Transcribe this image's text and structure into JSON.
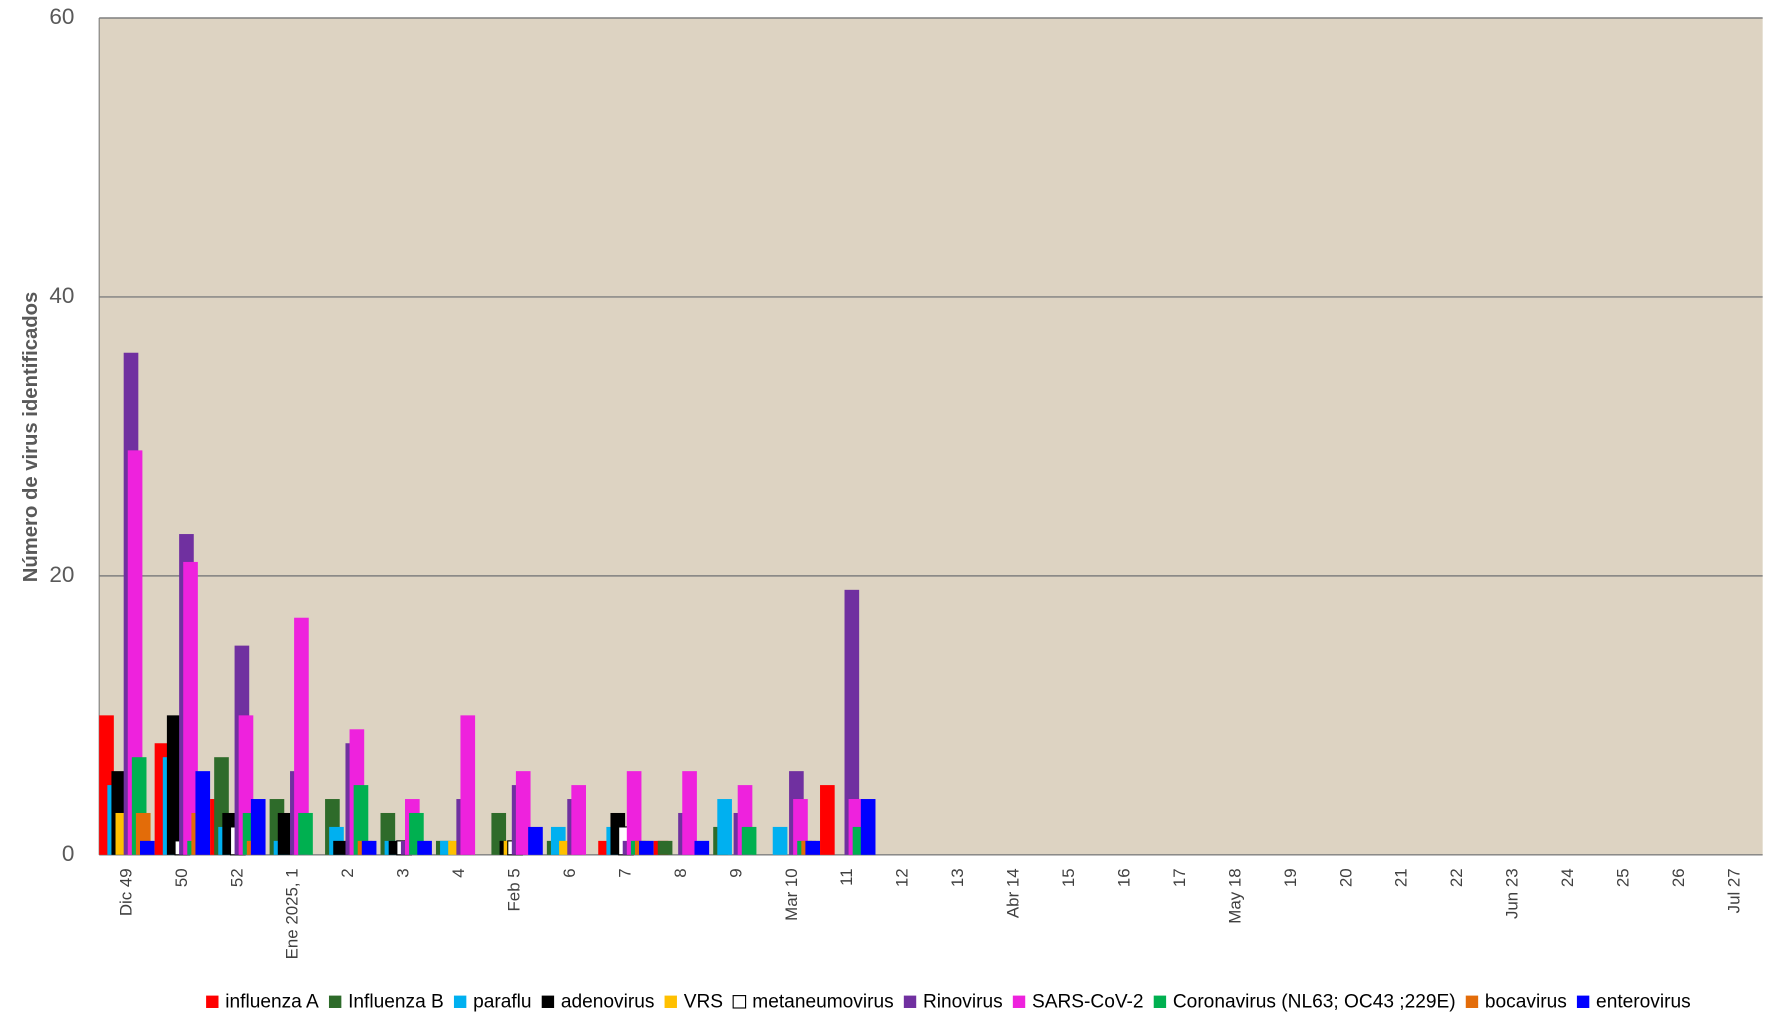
{
  "chart_data": {
    "type": "bar",
    "ylabel": "Número de virus identificados",
    "categories": [
      "Dic 49",
      "50",
      "52",
      "Ene 2025, 1",
      "2",
      "3",
      "4",
      "Feb 5",
      "6",
      "7",
      "8",
      "9",
      "Mar 10",
      "11",
      "12",
      "13",
      "Abr 14",
      "15",
      "16",
      "17",
      "May 18",
      "19",
      "20",
      "21",
      "22",
      "Jun 23",
      "24",
      "25",
      "26",
      "Jul 27"
    ],
    "series": [
      {
        "name": "influenza A",
        "color": "#ff0000",
        "values": [
          10,
          8,
          4,
          0,
          0,
          0,
          0,
          0,
          0,
          1,
          1,
          0,
          0,
          5,
          0,
          0,
          0,
          0,
          0,
          0,
          0,
          0,
          0,
          0,
          0,
          0,
          0,
          0,
          0,
          0
        ]
      },
      {
        "name": "Influenza B",
        "color": "#2e6b2a",
        "values": [
          0,
          0,
          7,
          4,
          4,
          3,
          1,
          3,
          1,
          0,
          1,
          2,
          0,
          0,
          0,
          0,
          0,
          0,
          0,
          0,
          0,
          0,
          0,
          0,
          0,
          0,
          0,
          0,
          0,
          0
        ]
      },
      {
        "name": "paraflu",
        "color": "#00b0f0",
        "values": [
          5,
          7,
          2,
          1,
          2,
          1,
          1,
          0,
          2,
          2,
          0,
          4,
          2,
          0,
          0,
          0,
          0,
          0,
          0,
          0,
          0,
          0,
          0,
          0,
          0,
          0,
          0,
          0,
          0,
          0
        ]
      },
      {
        "name": "adenovirus",
        "color": "#000000",
        "values": [
          6,
          10,
          3,
          3,
          1,
          1,
          0,
          1,
          0,
          3,
          0,
          0,
          0,
          0,
          0,
          0,
          0,
          0,
          0,
          0,
          0,
          0,
          0,
          0,
          0,
          0,
          0,
          0,
          0,
          0
        ]
      },
      {
        "name": "VRS",
        "color": "#ffc000",
        "values": [
          3,
          0,
          0,
          0,
          0,
          0,
          1,
          1,
          1,
          0,
          0,
          0,
          0,
          0,
          0,
          0,
          0,
          0,
          0,
          0,
          0,
          0,
          0,
          0,
          0,
          0,
          0,
          0,
          0,
          0
        ]
      },
      {
        "name": "metaneumovirus",
        "color": "#ffffff",
        "values": [
          0,
          1,
          2,
          0,
          0,
          1,
          0,
          1,
          0,
          2,
          0,
          0,
          0,
          0,
          0,
          0,
          0,
          0,
          0,
          0,
          0,
          0,
          0,
          0,
          0,
          0,
          0,
          0,
          0,
          0
        ]
      },
      {
        "name": "Rinovirus",
        "color": "#7030a0",
        "values": [
          36,
          23,
          15,
          6,
          8,
          1,
          4,
          5,
          4,
          1,
          3,
          3,
          6,
          19,
          0,
          0,
          0,
          0,
          0,
          0,
          0,
          0,
          0,
          0,
          0,
          0,
          0,
          0,
          0,
          0
        ]
      },
      {
        "name": "SARS-CoV-2",
        "color": "#ee22dd",
        "values": [
          29,
          21,
          10,
          17,
          9,
          4,
          10,
          6,
          5,
          6,
          6,
          5,
          4,
          4,
          0,
          0,
          0,
          0,
          0,
          0,
          0,
          0,
          0,
          0,
          0,
          0,
          0,
          0,
          0,
          0
        ]
      },
      {
        "name": "Coronavirus (NL63; OC43 ;229E)",
        "color": "#00b050",
        "values": [
          7,
          1,
          3,
          3,
          5,
          3,
          0,
          0,
          0,
          1,
          0,
          2,
          1,
          2,
          0,
          0,
          0,
          0,
          0,
          0,
          0,
          0,
          0,
          0,
          0,
          0,
          0,
          0,
          0,
          0
        ]
      },
      {
        "name": "bocavirus",
        "color": "#e36c09",
        "values": [
          3,
          3,
          1,
          0,
          1,
          0,
          0,
          0,
          0,
          1,
          0,
          0,
          1,
          0,
          0,
          0,
          0,
          0,
          0,
          0,
          0,
          0,
          0,
          0,
          0,
          0,
          0,
          0,
          0,
          0
        ]
      },
      {
        "name": "enterovirus",
        "color": "#0000ff",
        "values": [
          1,
          6,
          4,
          0,
          1,
          1,
          0,
          2,
          0,
          1,
          1,
          0,
          1,
          4,
          0,
          0,
          0,
          0,
          0,
          0,
          0,
          0,
          0,
          0,
          0,
          0,
          0,
          0,
          0,
          0
        ]
      }
    ],
    "ylim": [
      0,
      60
    ],
    "yticks": [
      0,
      20,
      40,
      60
    ],
    "grid": true,
    "legend": "bottom"
  }
}
